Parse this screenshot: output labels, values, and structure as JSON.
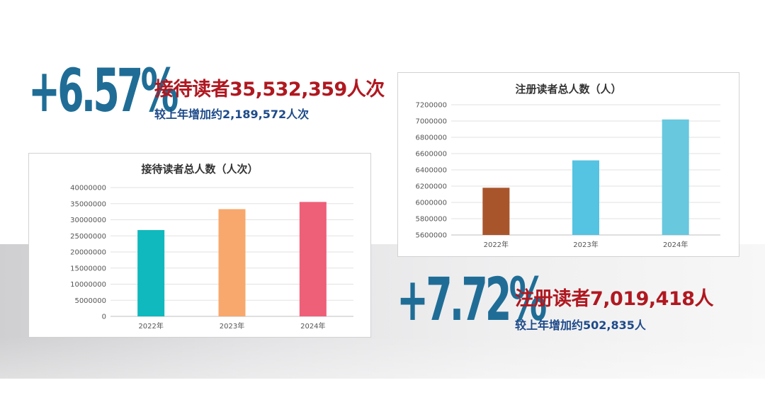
{
  "stat1": {
    "percent": "+6.57%",
    "headline": "接待读者35,532,359人次",
    "subline": "较上年增加约2,189,572人次"
  },
  "stat2": {
    "percent": "+7.72%",
    "headline": "注册读者7,019,418人",
    "subline": "较上年增加约502,835人"
  },
  "chart_data": [
    {
      "type": "bar",
      "title": "接待读者总人数（人次）",
      "categories": [
        "2022年",
        "2023年",
        "2024年"
      ],
      "values": [
        26800000,
        33300000,
        35532359
      ],
      "colors": [
        "#0fb9bd",
        "#f8a86c",
        "#ee5f78"
      ],
      "ylim": [
        0,
        40000000
      ],
      "yticks": [
        "0",
        "5000000",
        "10000000",
        "15000000",
        "20000000",
        "25000000",
        "30000000",
        "35000000",
        "40000000"
      ],
      "grid": true,
      "legend": "none"
    },
    {
      "type": "bar",
      "title": "注册读者总人数（人）",
      "categories": [
        "2022年",
        "2023年",
        "2024年"
      ],
      "values": [
        6180000,
        6516583,
        7019418
      ],
      "colors": [
        "#a9552c",
        "#55c3e2",
        "#67c8de"
      ],
      "ylim": [
        5600000,
        7200000
      ],
      "yticks": [
        "5600000",
        "5800000",
        "6000000",
        "6200000",
        "6400000",
        "6600000",
        "6800000",
        "7000000",
        "7200000"
      ],
      "grid": true,
      "legend": "none"
    }
  ]
}
